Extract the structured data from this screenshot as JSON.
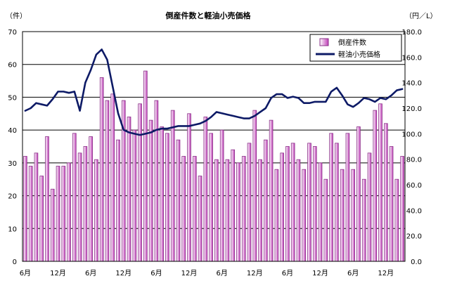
{
  "chart_data": {
    "type": "bar",
    "title": "倒産件数と軽油小売価格",
    "ylabel_left": "（件）",
    "ylabel_right": "（円／L）",
    "ylim_left": [
      0,
      70
    ],
    "ylim_right": [
      0,
      180
    ],
    "yticks_left": [
      "0",
      "10",
      "20",
      "30",
      "40",
      "50",
      "60",
      "70"
    ],
    "yticks_right": [
      "0.0",
      "20.0",
      "40.0",
      "60.0",
      "80.0",
      "100.0",
      "120.0",
      "140.0",
      "160.0",
      "180.0"
    ],
    "grid": true,
    "legend_position": "top-right",
    "x_tick_labels": [
      {
        "index": 0,
        "label": "6月"
      },
      {
        "index": 6,
        "label": "12月"
      },
      {
        "index": 12,
        "label": "6月"
      },
      {
        "index": 18,
        "label": "12月"
      },
      {
        "index": 24,
        "label": "6月"
      },
      {
        "index": 30,
        "label": "12月"
      },
      {
        "index": 36,
        "label": "6月"
      },
      {
        "index": 42,
        "label": "12月"
      },
      {
        "index": 48,
        "label": "6月"
      },
      {
        "index": 54,
        "label": "12月"
      },
      {
        "index": 60,
        "label": "6月"
      },
      {
        "index": 66,
        "label": "12月"
      }
    ],
    "colors": {
      "bar_fill_light": "#ffffff",
      "bar_fill_dark": "#c040b8",
      "bar_stroke": "#8a3088",
      "line": "#0d1a66",
      "grid": "#000000"
    },
    "series": [
      {
        "name": "倒産件数",
        "type": "bar",
        "axis": "left",
        "values": [
          32,
          29,
          33,
          26,
          38,
          22,
          29,
          29,
          30,
          39,
          33,
          35,
          38,
          31,
          56,
          49,
          51,
          37,
          49,
          44,
          40,
          48,
          58,
          43,
          49,
          41,
          39,
          46,
          37,
          32,
          45,
          32,
          26,
          44,
          39,
          31,
          40,
          31,
          34,
          30,
          32,
          36,
          46,
          31,
          37,
          43,
          28,
          33,
          35,
          36,
          31,
          28,
          36,
          35,
          30,
          25,
          39,
          36,
          28,
          39,
          28,
          41,
          25,
          33,
          46,
          48,
          42,
          35,
          25,
          32
        ]
      },
      {
        "name": "軽油小売価格",
        "type": "line",
        "axis": "right",
        "values": [
          118,
          120,
          124,
          123,
          122,
          127,
          133,
          133,
          132,
          133,
          118,
          140,
          150,
          162,
          166,
          158,
          137,
          116,
          103,
          101,
          100,
          99,
          100,
          101,
          103,
          104,
          104,
          105,
          106,
          106,
          106,
          107,
          108,
          110,
          113,
          117,
          116,
          115,
          114,
          113,
          112,
          112,
          114,
          117,
          120,
          128,
          131,
          131,
          128,
          129,
          128,
          124,
          124,
          125,
          125,
          125,
          133,
          136,
          130,
          123,
          121,
          124,
          128,
          127,
          125,
          128,
          127,
          130,
          134,
          135
        ]
      }
    ]
  }
}
